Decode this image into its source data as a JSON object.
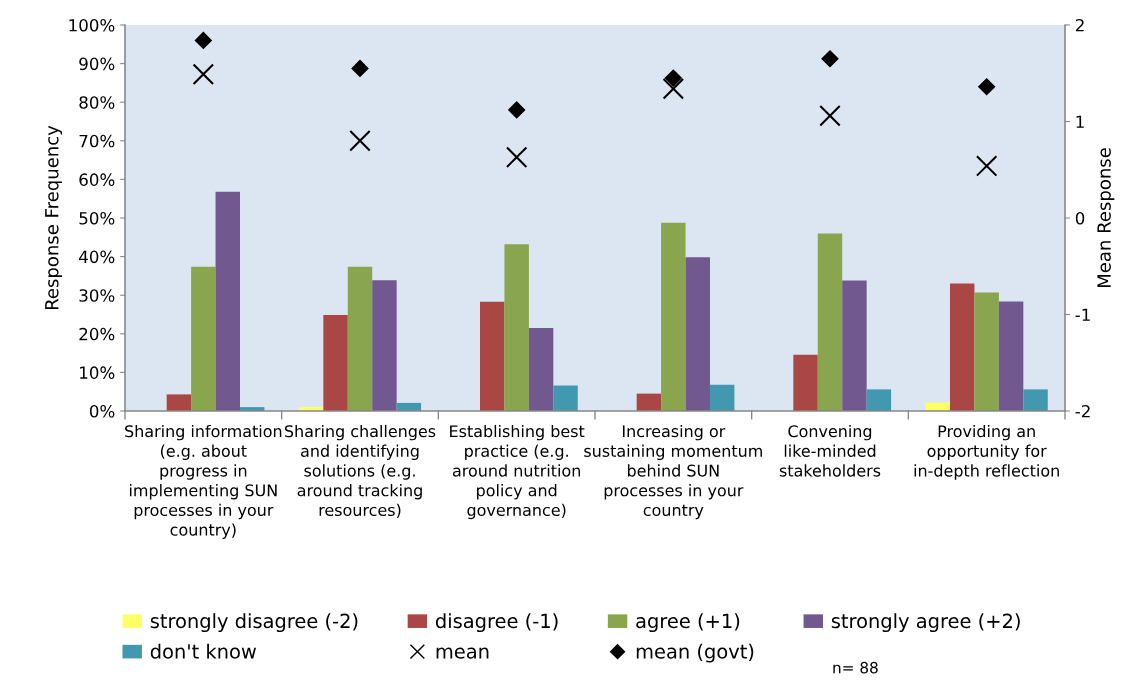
{
  "chart_data": {
    "type": "bar",
    "categories": [
      "Sharing information (e.g. about progress in implementing SUN processes in your country)",
      "Sharing challenges and identifying solutions (e.g. around tracking resources)",
      "Establishing best practice (e.g. around nutrition policy and governance)",
      "Increasing or sustaining momentum behind SUN processes in your country",
      "Convening like-minded stakeholders",
      "Providing an opportunity for in-depth reflection"
    ],
    "series": [
      {
        "name": "strongly disagree (-2)",
        "color": "#ffff66",
        "values": [
          0,
          1.0,
          0,
          0,
          0,
          2.2
        ]
      },
      {
        "name": "disagree (-1)",
        "color": "#aa4643",
        "values": [
          4.3,
          24.9,
          28.3,
          4.5,
          14.6,
          33.0
        ]
      },
      {
        "name": "agree (+1)",
        "color": "#89a54e",
        "values": [
          37.4,
          37.4,
          43.2,
          48.8,
          46.0,
          30.7
        ]
      },
      {
        "name": "strongly agree (+2)",
        "color": "#71588f",
        "values": [
          56.8,
          33.9,
          21.5,
          39.8,
          33.8,
          28.4
        ]
      },
      {
        "name": "don't know",
        "color": "#4198af",
        "values": [
          1.0,
          2.1,
          6.6,
          6.8,
          5.6,
          5.6
        ]
      },
      {
        "name": "mean",
        "type": "scatter",
        "axis": "y2",
        "marker": "cross",
        "color": "#000000",
        "values": [
          1.49,
          0.8,
          0.63,
          1.34,
          1.06,
          0.54
        ]
      },
      {
        "name": "mean (govt)",
        "type": "scatter",
        "axis": "y2",
        "marker": "diamond",
        "color": "#000000",
        "values": [
          1.84,
          1.55,
          1.12,
          1.45,
          1.65,
          1.36
        ]
      }
    ],
    "ylabel": "Response Frequency",
    "y2label": "Mean Response",
    "ylim": [
      0,
      100
    ],
    "yticks": [
      {
        "value": 0,
        "label": "0%"
      },
      {
        "value": 10,
        "label": "10%"
      },
      {
        "value": 20,
        "label": "20%"
      },
      {
        "value": 30,
        "label": "30%"
      },
      {
        "value": 40,
        "label": "40%"
      },
      {
        "value": 50,
        "label": "50%"
      },
      {
        "value": 60,
        "label": "60%"
      },
      {
        "value": 70,
        "label": "70%"
      },
      {
        "value": 80,
        "label": "80%"
      },
      {
        "value": 90,
        "label": "90%"
      },
      {
        "value": 100,
        "label": "100%"
      }
    ],
    "y2lim": [
      -2,
      2
    ],
    "y2ticks": [
      -2,
      -1,
      0,
      1,
      2
    ],
    "grid": false,
    "legend": "bottom",
    "annotations": [
      "n= 88"
    ]
  }
}
